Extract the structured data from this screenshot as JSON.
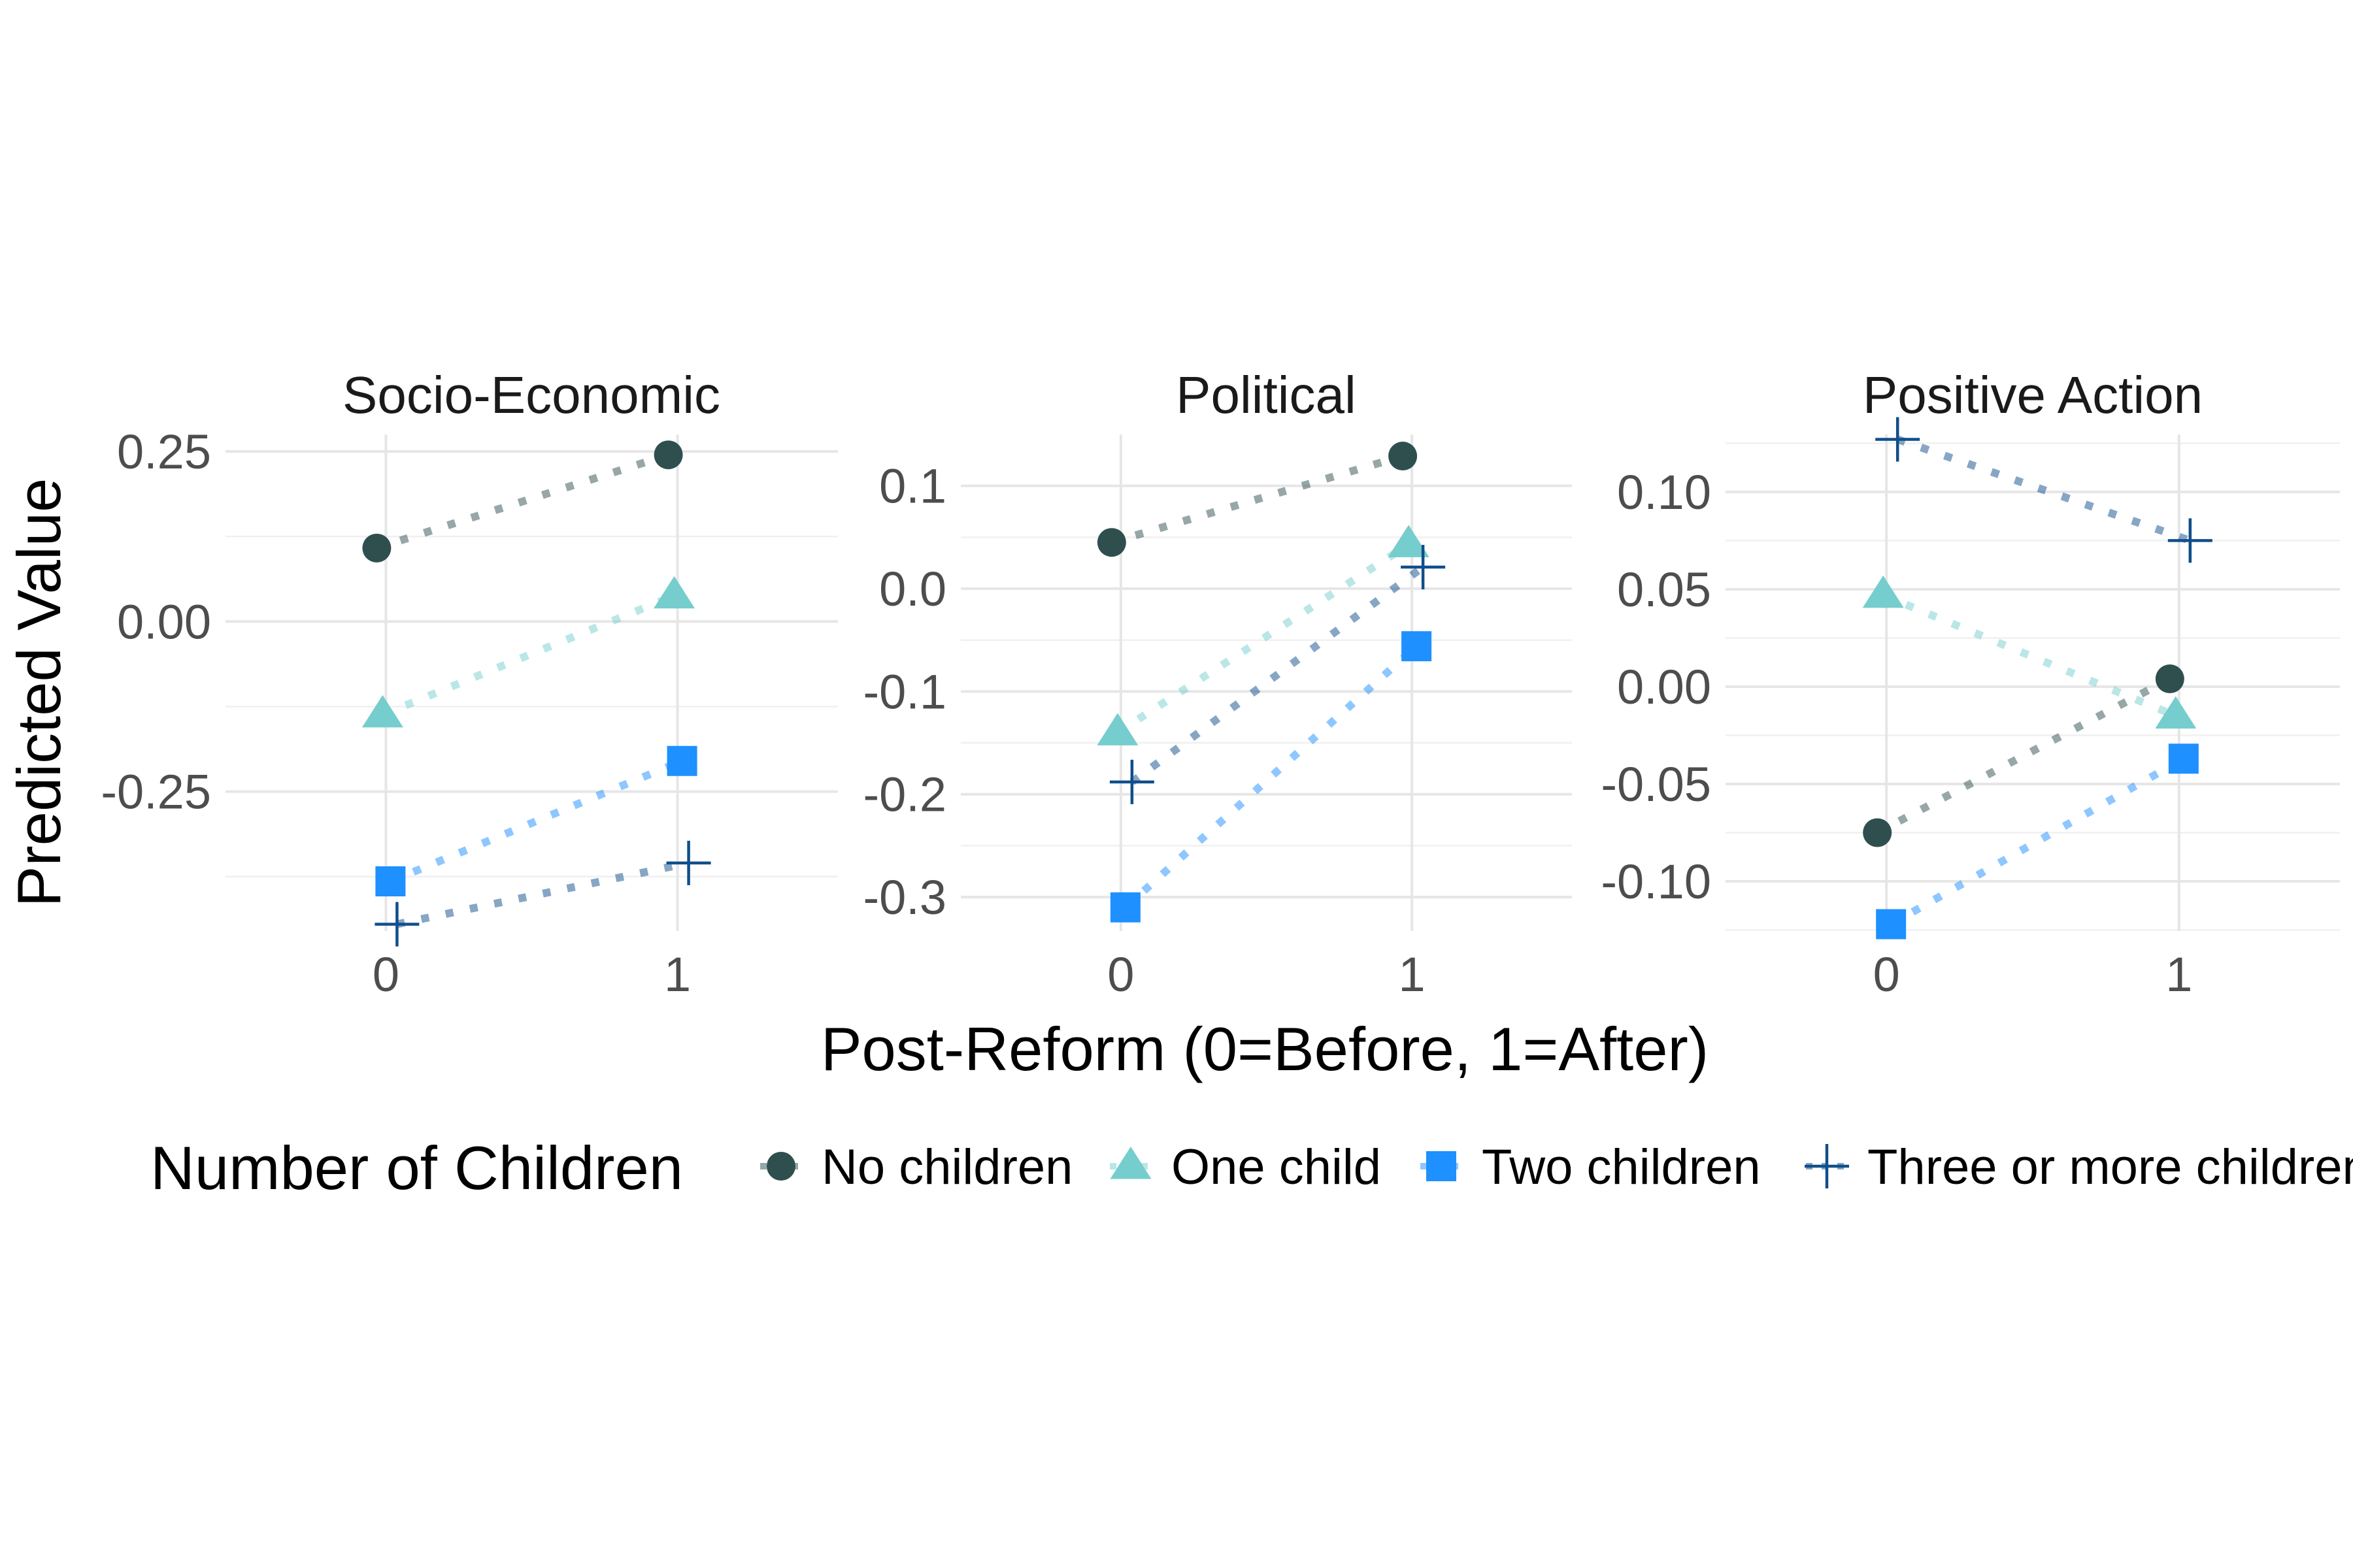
{
  "chart_data": {
    "type": "scatter",
    "ylabel": "Predicted Value",
    "xlabel": "Post-Reform (0=Before, 1=After)",
    "x_ticks": [
      "0",
      "1"
    ],
    "xlim": [
      -0.55,
      1.55
    ],
    "legend": {
      "title": "Number of Children",
      "position": "bottom",
      "entries": [
        {
          "label": "No children",
          "shape": "circle",
          "color": "#2f4f4f"
        },
        {
          "label": "One child",
          "shape": "triangle",
          "color": "#76cdcd"
        },
        {
          "label": "Two children",
          "shape": "square",
          "color": "#1e90ff"
        },
        {
          "label": "Three or more children",
          "shape": "plus",
          "color": "#104e8b"
        }
      ]
    },
    "grid": true,
    "line_style": "dotted",
    "panels": [
      {
        "title": "Socio-Economic",
        "ylim": [
          -0.455,
          0.275
        ],
        "yticks": [
          0.25,
          0.0,
          -0.25
        ],
        "ytick_labels": [
          "0.25",
          "0.00",
          "-0.25"
        ],
        "series": [
          {
            "name": "No children",
            "x": [
              0,
              1
            ],
            "y": [
              0.108,
              0.245
            ]
          },
          {
            "name": "One child",
            "x": [
              0,
              1
            ],
            "y": [
              -0.137,
              0.038
            ]
          },
          {
            "name": "Two children",
            "x": [
              0,
              1
            ],
            "y": [
              -0.382,
              -0.205
            ]
          },
          {
            "name": "Three or more children",
            "x": [
              0,
              1
            ],
            "y": [
              -0.445,
              -0.355
            ]
          }
        ]
      },
      {
        "title": "Political",
        "ylim": [
          -0.333,
          0.15
        ],
        "yticks": [
          0.1,
          0.0,
          -0.1,
          -0.2,
          -0.3
        ],
        "ytick_labels": [
          "0.1",
          "0.0",
          "-0.1",
          "-0.2",
          "-0.3"
        ],
        "series": [
          {
            "name": "No children",
            "x": [
              0,
              1
            ],
            "y": [
              0.045,
              0.129
            ]
          },
          {
            "name": "One child",
            "x": [
              0,
              1
            ],
            "y": [
              -0.14,
              0.043
            ]
          },
          {
            "name": "Two children",
            "x": [
              0,
              1
            ],
            "y": [
              -0.31,
              -0.056
            ]
          },
          {
            "name": "Three or more children",
            "x": [
              0,
              1
            ],
            "y": [
              -0.188,
              0.021
            ]
          }
        ]
      },
      {
        "title": "Positive Action",
        "ylim": [
          -0.1255,
          0.1295
        ],
        "yticks": [
          0.1,
          0.05,
          0.0,
          -0.05,
          -0.1
        ],
        "ytick_labels": [
          "0.10",
          "0.05",
          "0.00",
          "-0.05",
          "-0.10"
        ],
        "series": [
          {
            "name": "No children",
            "x": [
              0,
              1
            ],
            "y": [
              -0.075,
              0.004
            ]
          },
          {
            "name": "One child",
            "x": [
              0,
              1
            ],
            "y": [
              0.047,
              -0.015
            ]
          },
          {
            "name": "Two children",
            "x": [
              0,
              1
            ],
            "y": [
              -0.122,
              -0.037
            ]
          },
          {
            "name": "Three or more children",
            "x": [
              0,
              1
            ],
            "y": [
              0.127,
              0.075
            ]
          }
        ]
      }
    ]
  }
}
